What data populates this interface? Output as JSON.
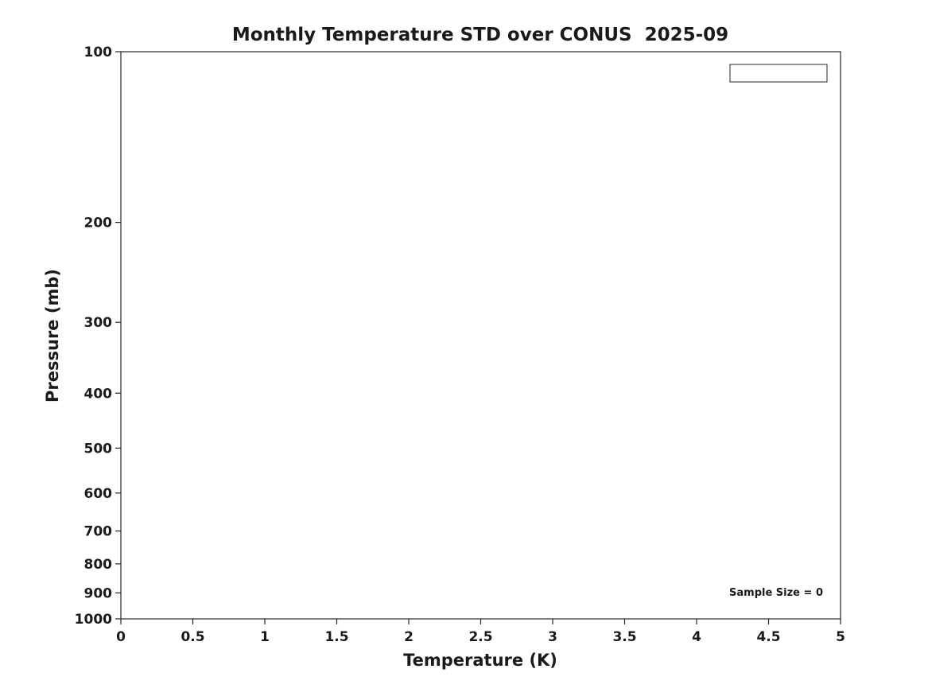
{
  "chart_data": {
    "type": "line",
    "title": "Monthly Temperature STD over CONUS  2025-09",
    "xlabel": "Temperature (K)",
    "ylabel": "Pressure (mb)",
    "xlim": [
      0,
      5
    ],
    "x_ticks": [
      "0",
      "0.5",
      "1",
      "1.5",
      "2",
      "2.5",
      "3",
      "3.5",
      "4",
      "4.5",
      "5"
    ],
    "x_tick_values": [
      0,
      0.5,
      1,
      1.5,
      2,
      2.5,
      3,
      3.5,
      4,
      4.5,
      5
    ],
    "y_scale": "log",
    "y_direction": "reversed",
    "ylim": [
      100,
      1000
    ],
    "y_ticks": [
      100,
      200,
      300,
      400,
      500,
      600,
      700,
      800,
      900,
      1000
    ],
    "series": [],
    "legend": {
      "visible": true,
      "entries": [],
      "position": "northeast"
    },
    "annotations": [
      {
        "text": "Sample Size = 0",
        "position": "bottom-right"
      }
    ],
    "grid": false,
    "colors": {
      "axis": "#262626",
      "text": "#1a1a1a",
      "background": "#ffffff"
    }
  }
}
